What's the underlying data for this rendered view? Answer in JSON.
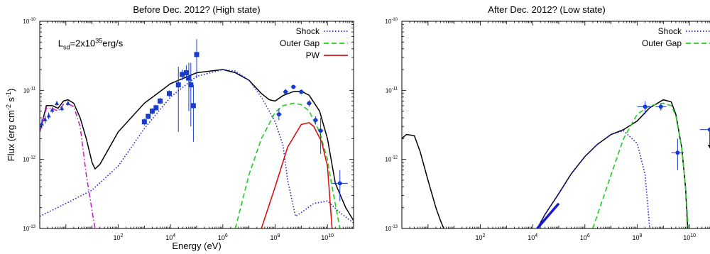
{
  "chart_data": [
    {
      "type": "line",
      "title": "Before Dec. 2012? (High state)",
      "xlabel": "Energy (eV)",
      "ylabel": "Flux (erg cm",
      "ylabel_sup1": "-2",
      "ylabel_mid": " s",
      "ylabel_sup2": "-1",
      "ylabel_end": ")",
      "x_scale": "log",
      "y_scale": "log",
      "xlim": [
        0.1,
        100000000000.0
      ],
      "ylim": [
        1e-13,
        1e-10
      ],
      "x_ticks": [
        100,
        10000,
        1000000,
        100000000,
        10000000000
      ],
      "x_tick_labels": [
        {
          "base": "10",
          "exp": "2"
        },
        {
          "base": "10",
          "exp": "4"
        },
        {
          "base": "10",
          "exp": "6"
        },
        {
          "base": "10",
          "exp": "8"
        },
        {
          "base": "10",
          "exp": "10"
        }
      ],
      "y_ticks": [
        1e-13,
        1e-12,
        1e-11,
        1e-10
      ],
      "y_tick_labels": [
        {
          "base": "10",
          "exp": "-13"
        },
        {
          "base": "10",
          "exp": "-12"
        },
        {
          "base": "10",
          "exp": "-11"
        },
        {
          "base": "10",
          "exp": "-10"
        }
      ],
      "annotation": {
        "prefix": "L",
        "sub": "sd",
        "mid": "=2x10",
        "sup": "35",
        "suffix": "erg/s",
        "at": [
          0.5,
          4.3e-11
        ]
      },
      "legend_position": "top-right",
      "legend": [
        {
          "label": "Shock",
          "color": "#2222cc",
          "style": "dotted"
        },
        {
          "label": "Outer Gap",
          "color": "#22cc22",
          "style": "dashed"
        },
        {
          "label": "PW",
          "color": "#dd1111",
          "style": "solid"
        }
      ],
      "series": [
        {
          "label": "Total",
          "color": "#000000",
          "style": "solid",
          "x": [
            0.1,
            0.18,
            0.3,
            0.5,
            0.8,
            1.2,
            2,
            3.5,
            6,
            10,
            13,
            20,
            100,
            1000,
            10000,
            100000,
            1000000,
            3000000,
            10000000,
            30000000,
            60000000,
            100000000,
            200000000,
            500000000,
            1000000000,
            2000000000,
            5000000000,
            10000000000,
            20000000000,
            50000000000,
            100000000000
          ],
          "y": [
            2.5e-12,
            6e-12,
            6e-12,
            5.5e-12,
            7e-12,
            7.3e-12,
            6.5e-12,
            4e-12,
            2e-12,
            9e-13,
            7.3e-13,
            8.5e-13,
            2.5e-12,
            6.5e-12,
            1.25e-11,
            1.8e-11,
            2e-11,
            1.8e-11,
            1.4e-11,
            9e-12,
            7.3e-12,
            7e-12,
            8.4e-12,
            9.6e-12,
            9.7e-12,
            8.5e-12,
            5e-12,
            2e-12,
            4.5e-13,
            2e-13,
            1.3e-13
          ]
        },
        {
          "label": "Shock",
          "color": "#2222cc",
          "style": "dotted",
          "x": [
            0.1,
            1,
            10,
            100,
            1000,
            10000,
            100000,
            1000000,
            3000000,
            10000000,
            30000000,
            100000000,
            200000000,
            300000000,
            600000000,
            1000000000,
            3000000000,
            10000000000,
            30000000000,
            100000000000
          ],
          "y": [
            1.5e-13,
            2.3e-13,
            3.6e-13,
            8e-13,
            2.8e-12,
            8e-12,
            1.6e-11,
            2e-11,
            1.9e-11,
            1.4e-11,
            8e-12,
            3.5e-12,
            1.6e-12,
            5e-13,
            1.5e-13,
            1.7e-13,
            2.3e-13,
            2.5e-13,
            1.7e-13,
            1.2e-13
          ]
        },
        {
          "label": "Outer Gap",
          "color": "#22cc22",
          "style": "dashed",
          "x": [
            3000000,
            10000000,
            30000000,
            100000000,
            200000000,
            500000000,
            1000000000,
            2000000000,
            5000000000,
            10000000000,
            15000000000,
            30000000000
          ],
          "y": [
            1e-13,
            6e-13,
            2e-12,
            4.8e-12,
            6e-12,
            6.5e-12,
            6.2e-12,
            5e-12,
            2.5e-12,
            1e-12,
            4e-13,
            1e-13
          ]
        },
        {
          "label": "PW",
          "color": "#dd1111",
          "style": "solid",
          "x": [
            30000000,
            100000000,
            300000000,
            1000000000,
            2000000000,
            3000000000,
            6000000000,
            10000000000,
            15000000000
          ],
          "y": [
            1e-13,
            4e-13,
            1.5e-12,
            3.2e-12,
            3.4e-12,
            3e-12,
            1.8e-12,
            8e-13,
            1e-13
          ]
        },
        {
          "label": "",
          "color": "#cc22cc",
          "style": "dashdot",
          "x": [
            0.1,
            0.18,
            0.3,
            0.5,
            0.8,
            1.2,
            2,
            3.5,
            6,
            10,
            13
          ],
          "y": [
            2.5e-12,
            5.5e-12,
            5.5e-12,
            5e-12,
            6.3e-12,
            6.4e-12,
            5.8e-12,
            3e-12,
            6e-13,
            1.8e-13,
            1e-13
          ]
        }
      ],
      "points": [
        {
          "x": 0.12,
          "y": 3.3e-12,
          "yerr": [
            2.8e-12,
            3.8e-12
          ],
          "marker": "triangle"
        },
        {
          "x": 0.16,
          "y": 3.8e-12,
          "yerr": [
            3.3e-12,
            4.3e-12
          ],
          "marker": "triangle"
        },
        {
          "x": 0.22,
          "y": 4.3e-12,
          "yerr": [
            3.8e-12,
            4.8e-12
          ],
          "marker": "triangle"
        },
        {
          "x": 0.3,
          "y": 5.2e-12,
          "yerr": [
            4.7e-12,
            5.7e-12
          ],
          "marker": "triangle"
        },
        {
          "x": 0.45,
          "y": 6.5e-12,
          "yerr": [
            6e-12,
            7e-12
          ],
          "marker": "triangle"
        },
        {
          "x": 0.7,
          "y": 5.5e-12,
          "yerr": [
            5e-12,
            6e-12
          ],
          "marker": "triangle"
        },
        {
          "x": 1.2,
          "y": 6.5e-12,
          "yerr": [
            6e-12,
            7e-12
          ],
          "marker": "triangle"
        },
        {
          "x": 1000,
          "y": 3.5e-12,
          "yerr": [
            3.1e-12,
            3.9e-12
          ],
          "marker": "square"
        },
        {
          "x": 1400,
          "y": 4.2e-12,
          "yerr": [
            3.8e-12,
            4.6e-12
          ],
          "marker": "square"
        },
        {
          "x": 2000,
          "y": 5e-12,
          "yerr": [
            4.5e-12,
            5.5e-12
          ],
          "marker": "square"
        },
        {
          "x": 2800,
          "y": 5.6e-12,
          "yerr": [
            5e-12,
            6.2e-12
          ],
          "marker": "square"
        },
        {
          "x": 4000,
          "y": 7e-12,
          "yerr": [
            6.3e-12,
            7.8e-12
          ],
          "marker": "square"
        },
        {
          "x": 9000,
          "y": 9e-12,
          "yerr": [
            8e-12,
            1e-11
          ],
          "marker": "square"
        },
        {
          "x": 20000,
          "y": 1.2e-11,
          "yerr": [
            2.5e-12,
            2.2e-11
          ],
          "marker": "square"
        },
        {
          "x": 28000,
          "y": 1.7e-11,
          "yerr": [
            1.4e-11,
            2e-11
          ],
          "marker": "square"
        },
        {
          "x": 40000,
          "y": 1.8e-11,
          "yerr": [
            1.4e-11,
            2.3e-11
          ],
          "marker": "square"
        },
        {
          "x": 50000,
          "y": 1.5e-11,
          "yerr": [
            5e-12,
            2.5e-11
          ],
          "marker": "square"
        },
        {
          "x": 60000,
          "y": 1.2e-11,
          "yerr": [
            3e-12,
            2.5e-11
          ],
          "marker": "square"
        },
        {
          "x": 75000,
          "y": 6e-12,
          "yerr": [
            1.8e-12,
            1.2e-11
          ],
          "marker": "square"
        },
        {
          "x": 100000,
          "y": 3.3e-11,
          "yerr": [
            1.5e-11,
            5.5e-11
          ],
          "marker": "square"
        },
        {
          "x": 140000000,
          "y": 4.5e-12,
          "xerr": [
            110000000,
            180000000
          ],
          "yerr": [
            3.7e-12,
            5.5e-12
          ],
          "marker": "circle"
        },
        {
          "x": 250000000,
          "y": 9.5e-12,
          "xerr": [
            200000000,
            320000000
          ],
          "yerr": [
            8.5e-12,
            1.05e-11
          ],
          "marker": "circle"
        },
        {
          "x": 500000000,
          "y": 1.12e-11,
          "xerr": [
            400000000,
            630000000
          ],
          "yerr": [
            1.05e-11,
            1.2e-11
          ],
          "marker": "circle"
        },
        {
          "x": 1000000000,
          "y": 9.5e-12,
          "xerr": [
            800000000,
            1300000000
          ],
          "yerr": [
            8.8e-12,
            1.03e-11
          ],
          "marker": "circle"
        },
        {
          "x": 2000000000,
          "y": 6.5e-12,
          "xerr": [
            1600000000,
            2500000000
          ],
          "yerr": [
            5.8e-12,
            7.2e-12
          ],
          "marker": "circle"
        },
        {
          "x": 3500000000,
          "y": 3.7e-12,
          "xerr": [
            2800000000,
            4400000000
          ],
          "yerr": [
            3.2e-12,
            4.2e-12
          ],
          "marker": "circle"
        },
        {
          "x": 5500000000,
          "y": 2.6e-12,
          "xerr": [
            4400000000,
            7000000000
          ],
          "yerr": [
            1.2e-12,
            4e-12
          ],
          "marker": "circle"
        },
        {
          "x": 30000000000,
          "y": 4.5e-13,
          "xerr": [
            15000000000,
            60000000000
          ],
          "yerr": [
            2.5e-13,
            7e-13
          ],
          "marker": "circle"
        }
      ]
    },
    {
      "type": "line",
      "title": "After Dec. 2012? (Low state)",
      "x_scale": "log",
      "y_scale": "log",
      "xlim": [
        0.1,
        100000000000.0
      ],
      "ylim": [
        1e-13,
        1e-10
      ],
      "x_ticks": [
        100,
        10000,
        1000000,
        100000000,
        10000000000
      ],
      "x_tick_labels": [
        {
          "base": "10",
          "exp": "2"
        },
        {
          "base": "10",
          "exp": "4"
        },
        {
          "base": "10",
          "exp": "6"
        },
        {
          "base": "10",
          "exp": "8"
        },
        {
          "base": "10",
          "exp": "10"
        }
      ],
      "y_ticks": [
        1e-13,
        1e-12,
        1e-11,
        1e-10
      ],
      "y_tick_labels": [
        {
          "base": "10",
          "exp": "-13"
        },
        {
          "base": "10",
          "exp": "-12"
        },
        {
          "base": "10",
          "exp": "-11"
        },
        {
          "base": "10",
          "exp": "-10"
        }
      ],
      "legend_position": "top-right",
      "legend": [
        {
          "label": "Shock",
          "color": "#2222cc",
          "style": "dotted"
        },
        {
          "label": "Outer Gap",
          "color": "#22cc22",
          "style": "dashed"
        }
      ],
      "series": [
        {
          "label": "Total",
          "color": "#000000",
          "style": "solid",
          "x": [
            0.1,
            0.15,
            0.3,
            0.5,
            1,
            2,
            3,
            4
          ],
          "y": [
            2e-12,
            2.3e-12,
            2.2e-12,
            1.3e-12,
            5e-13,
            2e-13,
            1.3e-13,
            1e-13
          ]
        },
        {
          "label": "Total",
          "color": "#000000",
          "style": "solid",
          "x": [
            15000,
            30000,
            100000,
            300000,
            1000000,
            3000000,
            10000000,
            30000000,
            100000000,
            300000000,
            1000000000,
            2000000000,
            3000000000,
            5000000000,
            7000000000,
            8500000000
          ],
          "y": [
            1e-13,
            1.6e-13,
            3.2e-13,
            6.2e-13,
            1.1e-12,
            1.65e-12,
            2.3e-12,
            2.7e-12,
            3.6e-12,
            5.6e-12,
            7.3e-12,
            6.8e-12,
            4.5e-12,
            1.5e-12,
            4e-13,
            1e-13
          ]
        },
        {
          "label": "Shock",
          "color": "#2222cc",
          "style": "dotted",
          "x": [
            15000,
            30000,
            100000,
            300000,
            1000000,
            3000000,
            10000000,
            30000000,
            100000000,
            200000000,
            300000000
          ],
          "y": [
            1e-13,
            1.6e-13,
            3.2e-13,
            6.2e-13,
            1.1e-12,
            1.65e-12,
            2.3e-12,
            2.6e-12,
            1.7e-12,
            6e-13,
            1e-13
          ]
        },
        {
          "label": "Outer Gap",
          "color": "#22cc22",
          "style": "dashed",
          "x": [
            2000000,
            10000000,
            30000000,
            100000000,
            300000000,
            1000000000,
            2000000000,
            3000000000,
            5000000000,
            7000000000,
            9000000000
          ],
          "y": [
            1e-13,
            6e-13,
            2e-12,
            4.5e-12,
            6e-12,
            6.5e-12,
            6e-12,
            4.3e-12,
            1.5e-12,
            4e-13,
            1e-13
          ]
        }
      ],
      "segments": [
        {
          "x": [
            15000,
            100000
          ],
          "y": [
            1e-13,
            2.3e-13
          ],
          "color": "#1a1acc"
        }
      ],
      "points": [
        {
          "x": 200000000,
          "y": 5.8e-12,
          "xerr": [
            100000000,
            400000000
          ],
          "yerr": [
            4.5e-12,
            7e-12
          ],
          "marker": "circle"
        },
        {
          "x": 800000000,
          "y": 5.8e-12,
          "xerr": [
            500000000,
            1300000000
          ],
          "yerr": [
            5.1e-12,
            6.5e-12
          ],
          "marker": "circle"
        },
        {
          "x": 3500000000,
          "y": 1.25e-12,
          "xerr": [
            2000000000,
            6000000000
          ],
          "yerr": [
            7e-13,
            2e-12
          ],
          "marker": "circle"
        },
        {
          "x": 60000000000,
          "y": 2.7e-12,
          "xerr": [
            25000000000,
            100000000000
          ],
          "upper_limit": true,
          "arrow_to": 1.45e-12,
          "marker": "circle"
        }
      ]
    }
  ]
}
